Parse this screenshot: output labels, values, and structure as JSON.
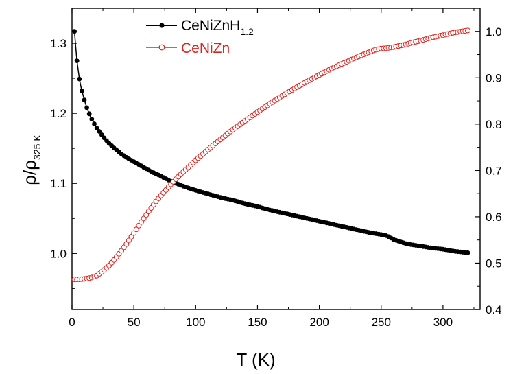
{
  "chart_data": {
    "type": "line",
    "xlabel": "T (K)",
    "ylabel": {
      "main": "ρ/ρ",
      "sub": "325 K"
    },
    "xlim": [
      0,
      330
    ],
    "ylim_left": [
      0.92,
      1.35
    ],
    "ylim_right": [
      0.4,
      1.05
    ],
    "x_ticks": [
      0,
      50,
      100,
      150,
      200,
      250,
      300
    ],
    "y_left_ticks": [
      "1.0",
      "1.1",
      "1.2",
      "1.3"
    ],
    "y_right_ticks": [
      "0.4",
      "0.5",
      "0.6",
      "0.7",
      "0.8",
      "0.9",
      "1.0"
    ],
    "grid": false,
    "legend_position": "top-left",
    "series": [
      {
        "name": "CeNiZnH",
        "name_subscript": "1.2",
        "axis": "left",
        "color": "#000000",
        "marker": "filled-circle",
        "x": [
          2,
          3,
          4,
          5,
          6,
          7,
          8,
          10,
          12,
          15,
          18,
          20,
          25,
          30,
          35,
          40,
          45,
          50,
          55,
          60,
          65,
          70,
          80,
          90,
          100,
          110,
          120,
          130,
          140,
          150,
          160,
          170,
          180,
          190,
          200,
          210,
          220,
          230,
          240,
          250,
          255,
          260,
          270,
          280,
          290,
          300,
          310,
          315,
          320
        ],
        "values": [
          1.317,
          1.295,
          1.275,
          1.262,
          1.249,
          1.24,
          1.232,
          1.219,
          1.208,
          1.195,
          1.185,
          1.179,
          1.167,
          1.157,
          1.149,
          1.142,
          1.136,
          1.131,
          1.126,
          1.121,
          1.116,
          1.112,
          1.103,
          1.096,
          1.09,
          1.085,
          1.08,
          1.076,
          1.071,
          1.067,
          1.062,
          1.058,
          1.054,
          1.05,
          1.046,
          1.042,
          1.038,
          1.034,
          1.03,
          1.027,
          1.025,
          1.02,
          1.014,
          1.011,
          1.008,
          1.006,
          1.003,
          1.002,
          1.001
        ]
      },
      {
        "name": "CeNiZn",
        "axis": "right",
        "color": "#e0221d",
        "marker": "open-circle",
        "x": [
          2,
          5,
          10,
          15,
          20,
          25,
          30,
          35,
          40,
          45,
          50,
          55,
          60,
          65,
          70,
          75,
          80,
          85,
          90,
          100,
          110,
          120,
          130,
          140,
          150,
          160,
          170,
          180,
          190,
          200,
          210,
          220,
          230,
          240,
          245,
          250,
          255,
          260,
          270,
          280,
          290,
          300,
          310,
          320
        ],
        "values": [
          0.465,
          0.465,
          0.466,
          0.468,
          0.473,
          0.483,
          0.495,
          0.51,
          0.527,
          0.545,
          0.565,
          0.585,
          0.604,
          0.623,
          0.64,
          0.655,
          0.67,
          0.684,
          0.697,
          0.722,
          0.745,
          0.767,
          0.788,
          0.807,
          0.826,
          0.844,
          0.861,
          0.877,
          0.892,
          0.906,
          0.92,
          0.932,
          0.944,
          0.955,
          0.96,
          0.963,
          0.964,
          0.966,
          0.972,
          0.979,
          0.986,
          0.992,
          0.998,
          1.002
        ]
      }
    ]
  }
}
